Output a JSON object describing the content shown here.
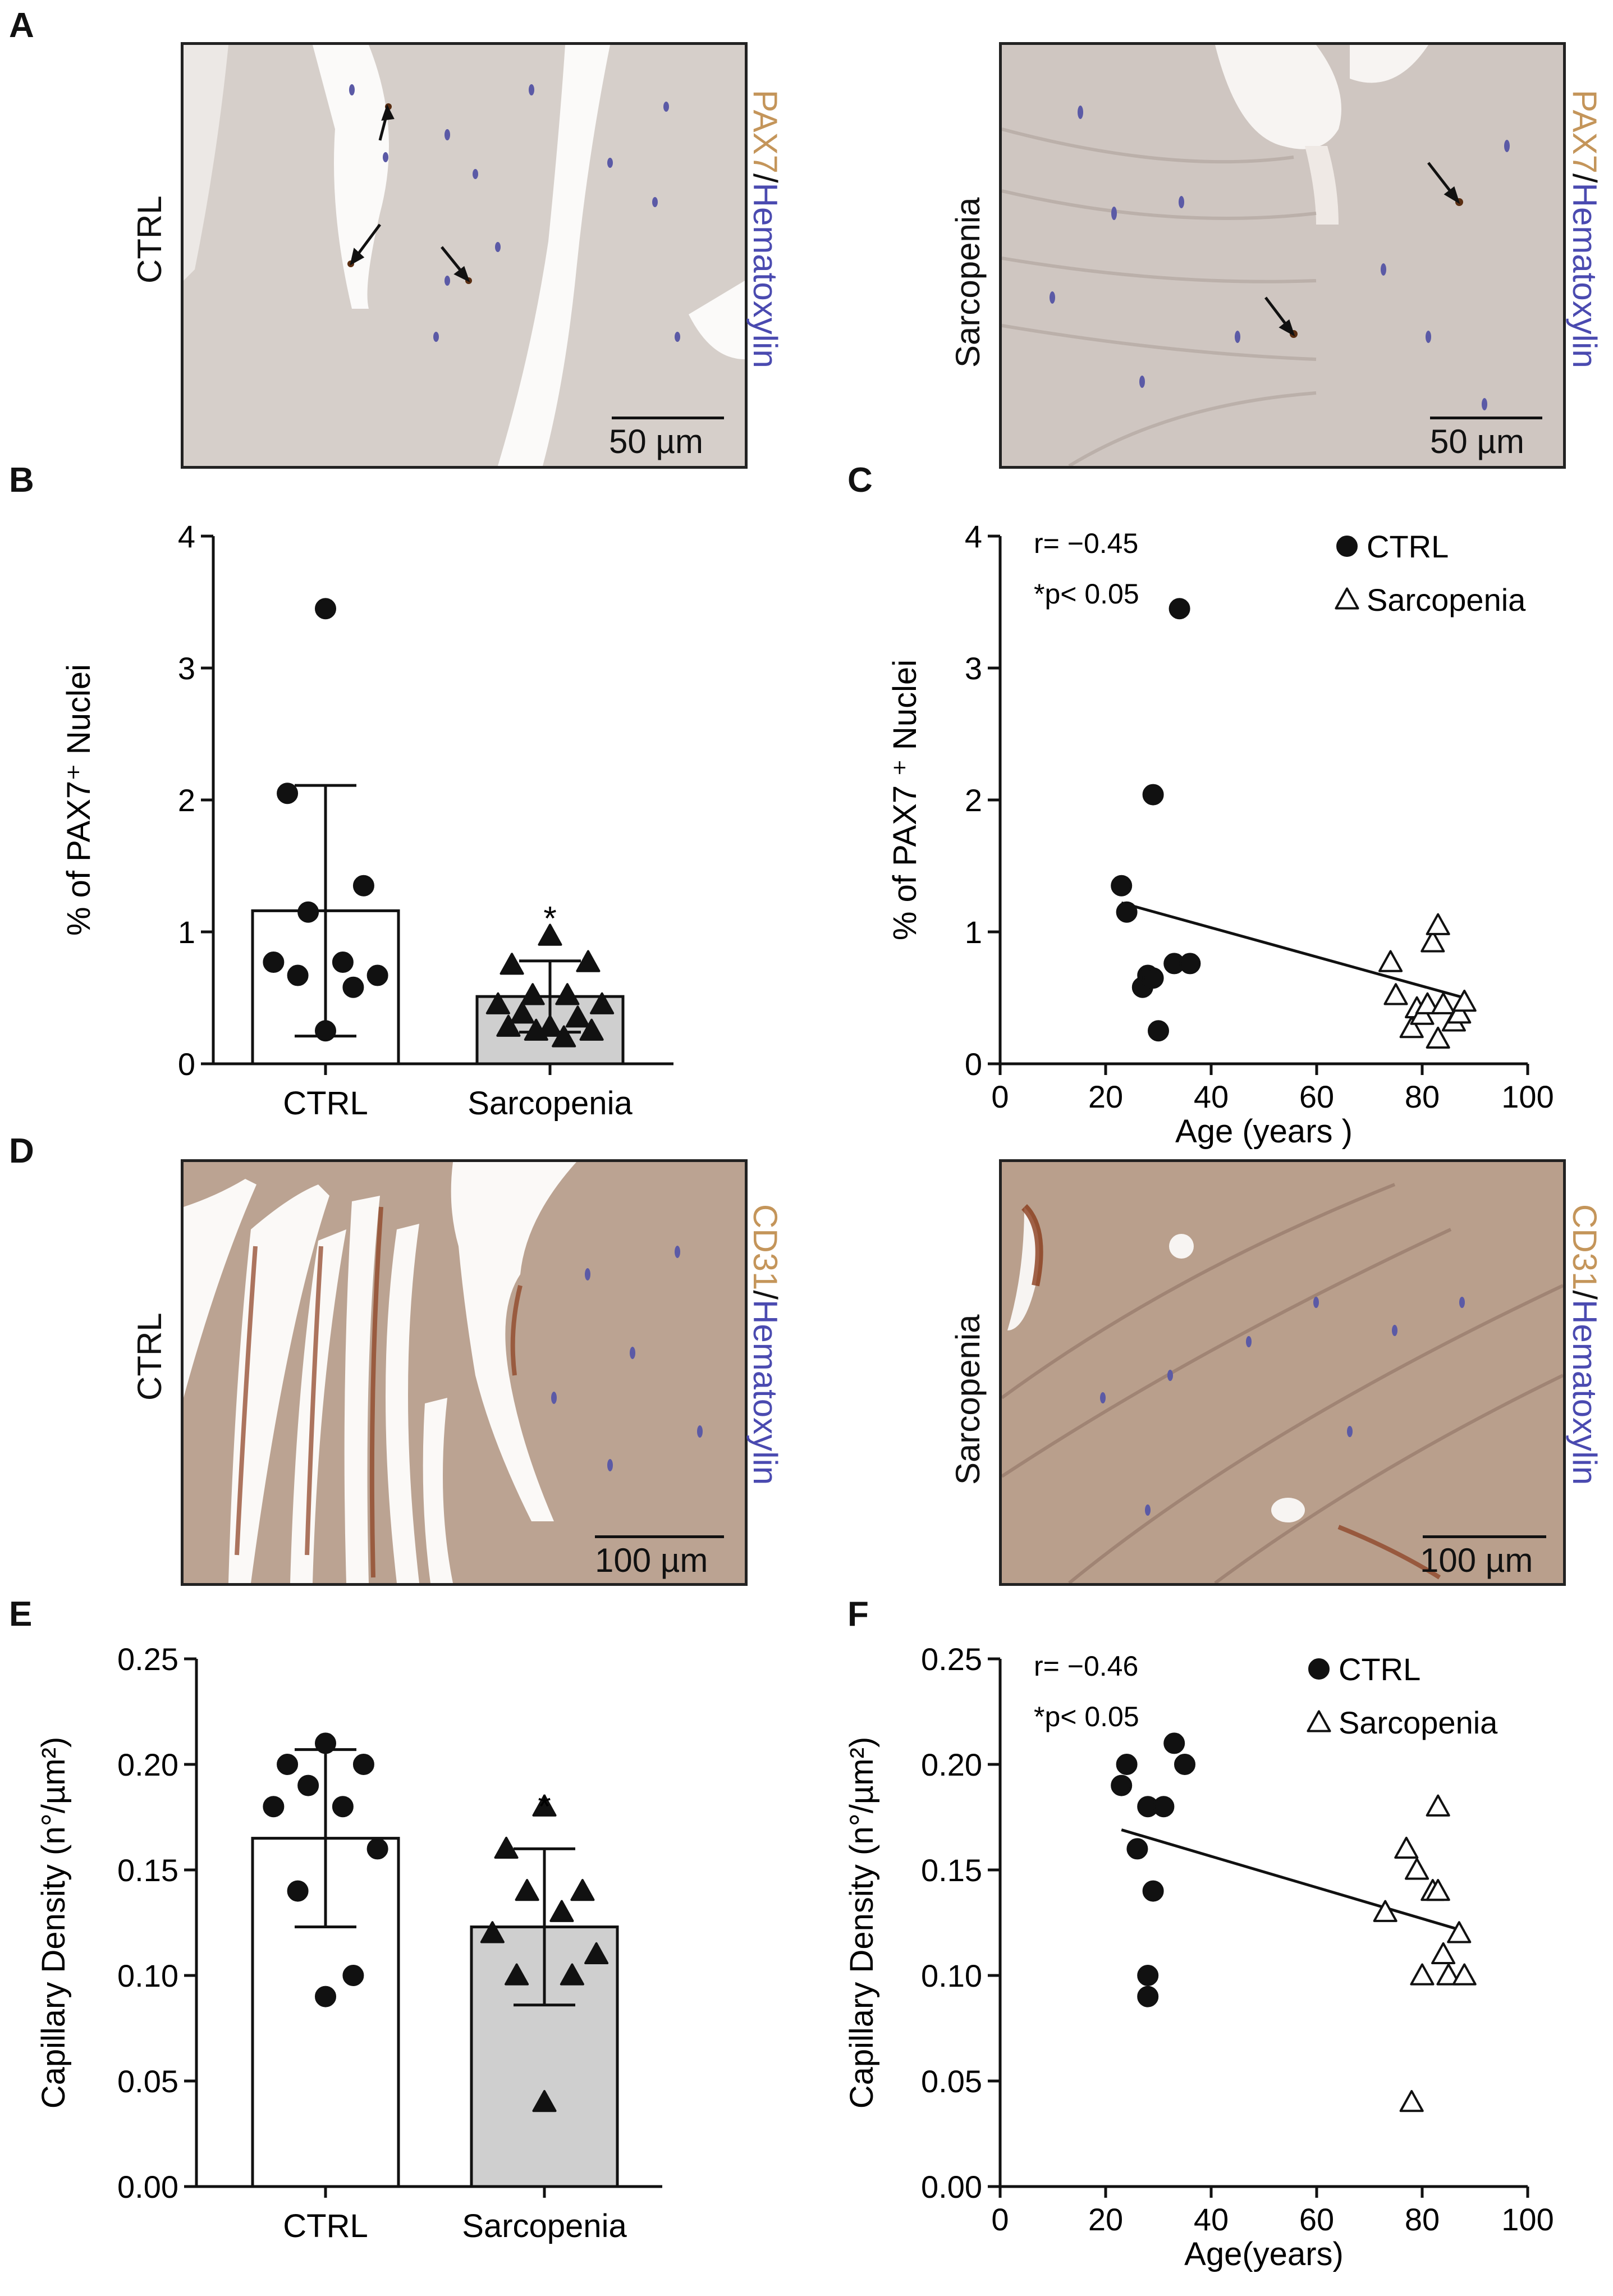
{
  "panels": {
    "A": {
      "letter": "A",
      "left_label": "CTRL",
      "right_label": "Sarcopenia",
      "stain_marker": "PAX7",
      "stain_sep": "/",
      "stain_counter": "Hematoxylin",
      "scale_left": "50 µm",
      "scale_right": "50 µm"
    },
    "B": {
      "letter": "B"
    },
    "C": {
      "letter": "C"
    },
    "D": {
      "letter": "D",
      "left_label": "CTRL",
      "right_label": "Sarcopenia",
      "stain_marker": "CD31",
      "stain_sep": "/",
      "stain_counter": "Hematoxylin",
      "scale_left": "100 µm",
      "scale_right": "100 µm"
    },
    "E": {
      "letter": "E"
    },
    "F": {
      "letter": "F"
    }
  },
  "colors": {
    "marker_brown": "#c4955a",
    "hematoxylin_blue": "#4a4ab0",
    "bar_ctrl": "#ffffff",
    "bar_sarc": "#cfcfcf"
  },
  "chart_data": [
    {
      "id": "B",
      "type": "bar",
      "title": "",
      "xlabel": "",
      "ylabel": "% of PAX7⁺ Nuclei",
      "ylim": [
        0,
        4
      ],
      "yticks": [
        0,
        1,
        2,
        3,
        4
      ],
      "categories": [
        "CTRL",
        "Sarcopenia"
      ],
      "values": [
        1.16,
        0.51
      ],
      "error": [
        0.95,
        0.27
      ],
      "sig": [
        "",
        "*"
      ],
      "points": [
        [
          3.45,
          2.05,
          1.35,
          1.15,
          0.77,
          0.77,
          0.67,
          0.67,
          0.58,
          0.25
        ],
        [
          0.97,
          0.75,
          0.77,
          0.52,
          0.52,
          0.45,
          0.45,
          0.38,
          0.35,
          0.28,
          0.28,
          0.25,
          0.25,
          0.2
        ]
      ],
      "markers": [
        "circle",
        "triangle"
      ]
    },
    {
      "id": "C",
      "type": "scatter",
      "title": "",
      "xlabel": "Age (years )",
      "ylabel": "% of PAX7 ⁺ Nuclei",
      "xlim": [
        0,
        100
      ],
      "xticks": [
        0,
        20,
        40,
        60,
        80,
        100
      ],
      "ylim": [
        0,
        4
      ],
      "yticks": [
        0,
        1,
        2,
        3,
        4
      ],
      "annotations": [
        "r= −0.45",
        "*p< 0.05"
      ],
      "legend": {
        "position": "top-right",
        "entries": [
          "CTRL",
          "Sarcopenia"
        ]
      },
      "series": [
        {
          "name": "CTRL",
          "marker": "circle",
          "filled": true,
          "points": [
            [
              23,
              1.35
            ],
            [
              24,
              1.15
            ],
            [
              29,
              2.04
            ],
            [
              34,
              3.45
            ],
            [
              27,
              0.58
            ],
            [
              28,
              0.67
            ],
            [
              29,
              0.65
            ],
            [
              30,
              0.25
            ],
            [
              33,
              0.76
            ],
            [
              36,
              0.76
            ]
          ]
        },
        {
          "name": "Sarcopenia",
          "marker": "triangle",
          "filled": false,
          "points": [
            [
              74,
              0.77
            ],
            [
              75,
              0.52
            ],
            [
              78,
              0.27
            ],
            [
              79,
              0.42
            ],
            [
              80,
              0.37
            ],
            [
              81,
              0.45
            ],
            [
              82,
              0.92
            ],
            [
              83,
              1.05
            ],
            [
              83,
              0.19
            ],
            [
              84,
              0.45
            ],
            [
              86,
              0.32
            ],
            [
              87,
              0.38
            ],
            [
              88,
              0.47
            ]
          ]
        }
      ],
      "fit": {
        "x": [
          23,
          88
        ],
        "y": [
          1.22,
          0.5
        ]
      }
    },
    {
      "id": "E",
      "type": "bar",
      "title": "",
      "xlabel": "",
      "ylabel": "Capillary Density (n°/µm²)",
      "ylim": [
        0,
        0.25
      ],
      "yticks": [
        "0.00",
        "0.05",
        "0.10",
        "0.15",
        "0.20",
        "0.25"
      ],
      "categories": [
        "CTRL",
        "Sarcopenia"
      ],
      "values": [
        0.165,
        0.123
      ],
      "error": [
        0.042,
        0.037
      ],
      "sig": [
        "",
        "*"
      ],
      "points": [
        [
          0.21,
          0.2,
          0.2,
          0.19,
          0.18,
          0.18,
          0.16,
          0.14,
          0.1,
          0.09
        ],
        [
          0.18,
          0.16,
          0.14,
          0.14,
          0.13,
          0.12,
          0.11,
          0.1,
          0.1,
          0.04
        ]
      ],
      "markers": [
        "circle",
        "triangle"
      ]
    },
    {
      "id": "F",
      "type": "scatter",
      "title": "",
      "xlabel": "Age(years)",
      "ylabel": "Capillary Density (n°/µm²)",
      "xlim": [
        0,
        100
      ],
      "xticks": [
        0,
        20,
        40,
        60,
        80,
        100
      ],
      "ylim": [
        0,
        0.25
      ],
      "yticks": [
        "0.00",
        "0.05",
        "0.10",
        "0.15",
        "0.20",
        "0.25"
      ],
      "annotations": [
        "r= −0.46",
        "*p< 0.05"
      ],
      "legend": {
        "position": "top-right",
        "entries": [
          "CTRL",
          "Sarcopenia"
        ]
      },
      "series": [
        {
          "name": "CTRL",
          "marker": "circle",
          "filled": true,
          "points": [
            [
              23,
              0.19
            ],
            [
              24,
              0.2
            ],
            [
              26,
              0.16
            ],
            [
              28,
              0.18
            ],
            [
              28,
              0.1
            ],
            [
              28,
              0.09
            ],
            [
              29,
              0.14
            ],
            [
              31,
              0.18
            ],
            [
              33,
              0.21
            ],
            [
              35,
              0.2
            ]
          ]
        },
        {
          "name": "Sarcopenia",
          "marker": "triangle",
          "filled": false,
          "points": [
            [
              73,
              0.13
            ],
            [
              77,
              0.16
            ],
            [
              78,
              0.04
            ],
            [
              79,
              0.15
            ],
            [
              80,
              0.1
            ],
            [
              82,
              0.14
            ],
            [
              83,
              0.18
            ],
            [
              83,
              0.14
            ],
            [
              84,
              0.11
            ],
            [
              85,
              0.1
            ],
            [
              87,
              0.12
            ],
            [
              88,
              0.1
            ]
          ]
        }
      ],
      "fit": {
        "x": [
          23,
          88
        ],
        "y": [
          0.169,
          0.121
        ]
      }
    }
  ]
}
